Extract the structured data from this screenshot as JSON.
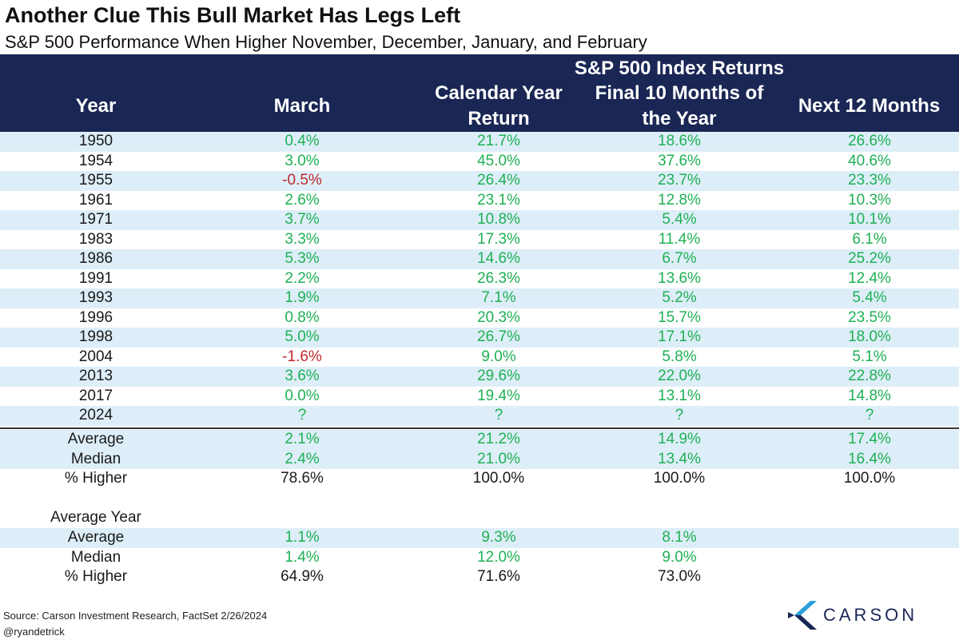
{
  "title": "Another Clue This Bull Market Has Legs Left",
  "subtitle": "S&P 500 Performance When Higher November, December, January, and February",
  "header": {
    "group": "S&P 500 Index Returns",
    "year": "Year",
    "march": "March",
    "calendar_line1": "Calendar Year",
    "calendar_line2": "Return",
    "final_line1": "Final 10 Months of",
    "final_line2": "the Year",
    "next": "Next 12 Months"
  },
  "rows": [
    {
      "year": "1950",
      "march": "0.4%",
      "calendar": "21.7%",
      "final10": "18.6%",
      "next12": "26.6%"
    },
    {
      "year": "1954",
      "march": "3.0%",
      "calendar": "45.0%",
      "final10": "37.6%",
      "next12": "40.6%"
    },
    {
      "year": "1955",
      "march": "-0.5%",
      "calendar": "26.4%",
      "final10": "23.7%",
      "next12": "23.3%"
    },
    {
      "year": "1961",
      "march": "2.6%",
      "calendar": "23.1%",
      "final10": "12.8%",
      "next12": "10.3%"
    },
    {
      "year": "1971",
      "march": "3.7%",
      "calendar": "10.8%",
      "final10": "5.4%",
      "next12": "10.1%"
    },
    {
      "year": "1983",
      "march": "3.3%",
      "calendar": "17.3%",
      "final10": "11.4%",
      "next12": "6.1%"
    },
    {
      "year": "1986",
      "march": "5.3%",
      "calendar": "14.6%",
      "final10": "6.7%",
      "next12": "25.2%"
    },
    {
      "year": "1991",
      "march": "2.2%",
      "calendar": "26.3%",
      "final10": "13.6%",
      "next12": "12.4%"
    },
    {
      "year": "1993",
      "march": "1.9%",
      "calendar": "7.1%",
      "final10": "5.2%",
      "next12": "5.4%"
    },
    {
      "year": "1996",
      "march": "0.8%",
      "calendar": "20.3%",
      "final10": "15.7%",
      "next12": "23.5%"
    },
    {
      "year": "1998",
      "march": "5.0%",
      "calendar": "26.7%",
      "final10": "17.1%",
      "next12": "18.0%"
    },
    {
      "year": "2004",
      "march": "-1.6%",
      "calendar": "9.0%",
      "final10": "5.8%",
      "next12": "5.1%"
    },
    {
      "year": "2013",
      "march": "3.6%",
      "calendar": "29.6%",
      "final10": "22.0%",
      "next12": "22.8%"
    },
    {
      "year": "2017",
      "march": "0.0%",
      "calendar": "19.4%",
      "final10": "13.1%",
      "next12": "14.8%"
    },
    {
      "year": "2024",
      "march": "?",
      "calendar": "?",
      "final10": "?",
      "next12": "?"
    }
  ],
  "summary": [
    {
      "label": "Average",
      "march": "2.1%",
      "calendar": "21.2%",
      "final10": "14.9%",
      "next12": "17.4%"
    },
    {
      "label": "Median",
      "march": "2.4%",
      "calendar": "21.0%",
      "final10": "13.4%",
      "next12": "16.4%"
    },
    {
      "label": "% Higher",
      "march": "78.6%",
      "calendar": "100.0%",
      "final10": "100.0%",
      "next12": "100.0%"
    }
  ],
  "average_year": {
    "label": "Average Year",
    "rows": [
      {
        "label": "Average",
        "march": "1.1%",
        "calendar": "9.3%",
        "final10": "8.1%"
      },
      {
        "label": "Median",
        "march": "1.4%",
        "calendar": "12.0%",
        "final10": "9.0%"
      },
      {
        "label": "% Higher",
        "march": "64.9%",
        "calendar": "71.6%",
        "final10": "73.0%"
      }
    ]
  },
  "footer": {
    "source": "Source: Carson Investment Research, FactSet 2/26/2024",
    "handle": "@ryandetrick",
    "logo_text": "CARSON",
    "logo_icon": "carson-chevron-icon"
  },
  "colors": {
    "header_bg": "#1a2755",
    "row_shade": "#ddeef8",
    "positive": "#1fb055",
    "negative": "#c0292e"
  }
}
